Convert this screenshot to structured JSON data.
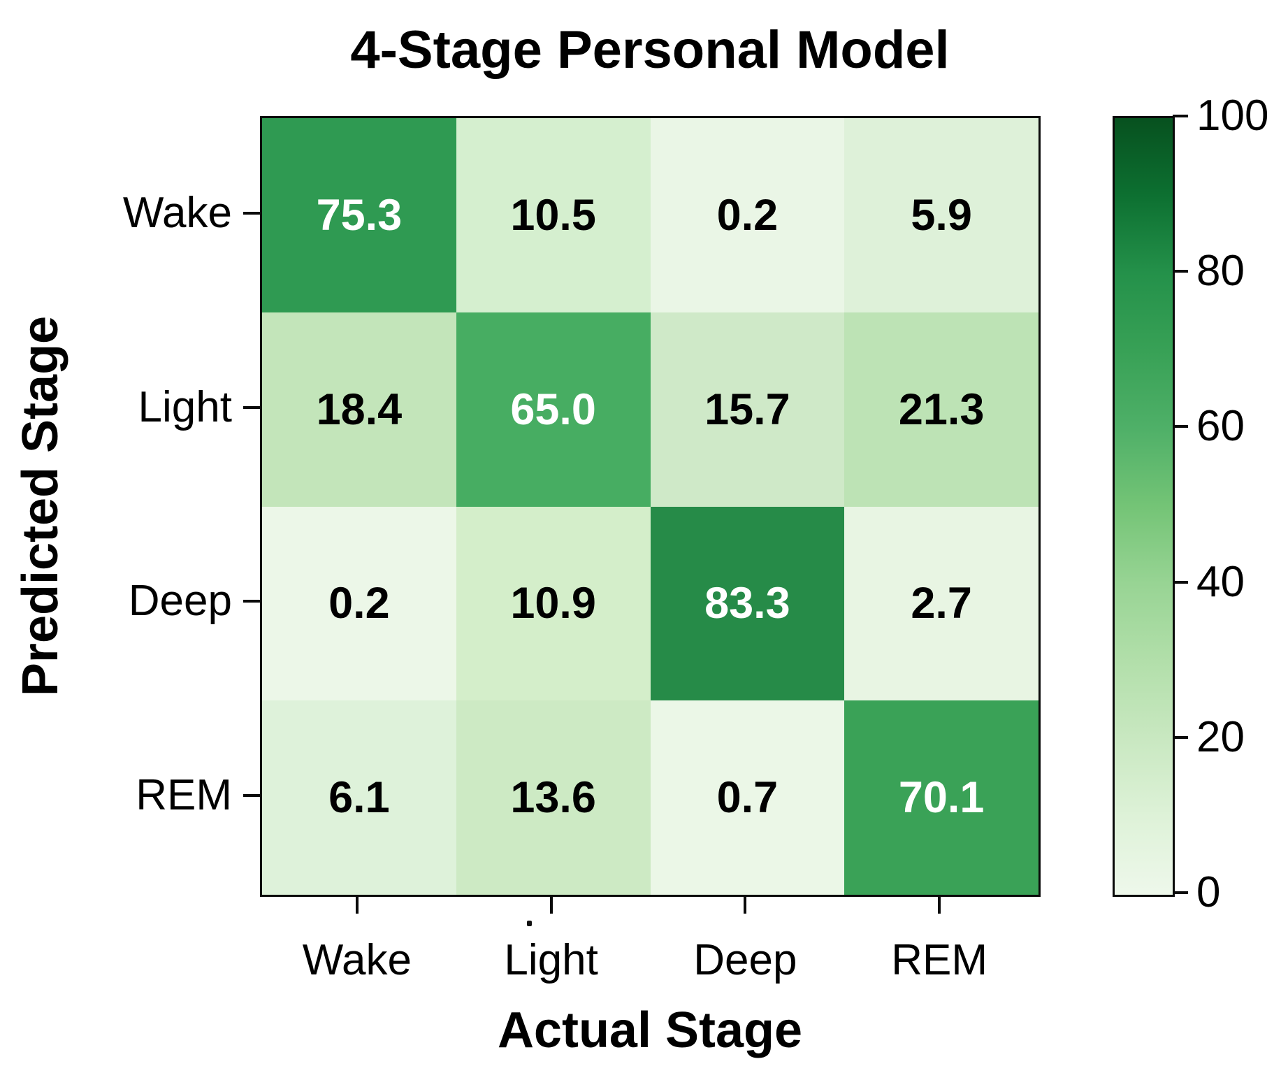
{
  "chart_data": {
    "type": "heatmap",
    "title": "4-Stage Personal Model",
    "xlabel": "Actual Stage",
    "ylabel": "Predicted Stage",
    "x_categories": [
      "Wake",
      "Light",
      "Deep",
      "REM"
    ],
    "y_categories": [
      "Wake",
      "Light",
      "Deep",
      "REM"
    ],
    "values": [
      [
        75.3,
        10.5,
        0.2,
        5.9
      ],
      [
        18.4,
        65.0,
        15.7,
        21.3
      ],
      [
        0.2,
        10.9,
        83.3,
        2.7
      ],
      [
        6.1,
        13.6,
        0.7,
        70.1
      ]
    ],
    "rows": [
      {
        "label": "Wake",
        "cells": [
          {
            "label": "75.3",
            "bg": "#2f9a52",
            "fg": "#ffffff"
          },
          {
            "label": "10.5",
            "bg": "#d5efcf",
            "fg": "#000000"
          },
          {
            "label": "0.2",
            "bg": "#eaf6e6",
            "fg": "#000000"
          },
          {
            "label": "5.9",
            "bg": "#def1d9",
            "fg": "#000000"
          }
        ]
      },
      {
        "label": "Light",
        "cells": [
          {
            "label": "18.4",
            "bg": "#c3e5ba",
            "fg": "#000000"
          },
          {
            "label": "65.0",
            "bg": "#47ad62",
            "fg": "#ffffff"
          },
          {
            "label": "15.7",
            "bg": "#cfe9c8",
            "fg": "#000000"
          },
          {
            "label": "21.3",
            "bg": "#bde3b5",
            "fg": "#000000"
          }
        ]
      },
      {
        "label": "Deep",
        "cells": [
          {
            "label": "0.2",
            "bg": "#ecf7e8",
            "fg": "#000000"
          },
          {
            "label": "10.9",
            "bg": "#d4eeca",
            "fg": "#000000"
          },
          {
            "label": "83.3",
            "bg": "#268b48",
            "fg": "#ffffff"
          },
          {
            "label": "2.7",
            "bg": "#e8f5e3",
            "fg": "#000000"
          }
        ]
      },
      {
        "label": "REM",
        "cells": [
          {
            "label": "6.1",
            "bg": "#def2da",
            "fg": "#000000"
          },
          {
            "label": "13.6",
            "bg": "#cdeac4",
            "fg": "#000000"
          },
          {
            "label": "0.7",
            "bg": "#ebf7e7",
            "fg": "#000000"
          },
          {
            "label": "70.1",
            "bg": "#3aa257",
            "fg": "#ffffff"
          }
        ]
      }
    ],
    "colorbar": {
      "min": 0,
      "max": 100,
      "tick_labels": [
        "100",
        "80",
        "60",
        "40",
        "20",
        "0"
      ],
      "gradient": [
        {
          "pos": 0,
          "color": "#eef8eb"
        },
        {
          "pos": 10,
          "color": "#def2d8"
        },
        {
          "pos": 20,
          "color": "#c9e8c1"
        },
        {
          "pos": 30,
          "color": "#b2dfaa"
        },
        {
          "pos": 40,
          "color": "#98d494"
        },
        {
          "pos": 50,
          "color": "#74c476"
        },
        {
          "pos": 60,
          "color": "#4fb068"
        },
        {
          "pos": 70,
          "color": "#38a156"
        },
        {
          "pos": 80,
          "color": "#24914a"
        },
        {
          "pos": 90,
          "color": "#0d7031"
        },
        {
          "pos": 100,
          "color": "#07511f"
        }
      ]
    },
    "grid": false,
    "legend_position": "right-colorbar"
  }
}
